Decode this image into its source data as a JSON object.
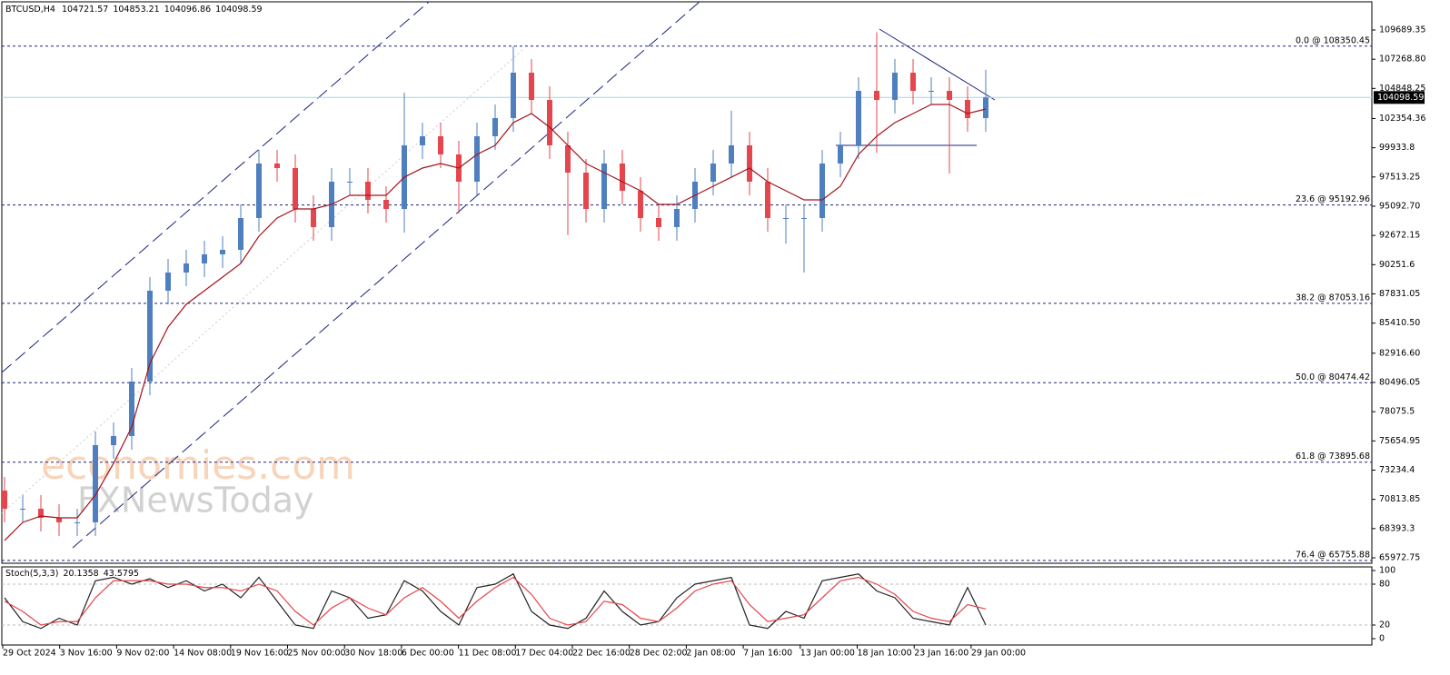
{
  "chart_data": {
    "type": "candlestick",
    "header": {
      "symbol": "BTCUSD,H4",
      "open": 104721.57,
      "high": 104853.21,
      "low": 104096.86,
      "close": 104098.59
    },
    "watermark": [
      "economies.com",
      "FXNewsToday"
    ],
    "ylim": [
      65521,
      112172
    ],
    "yticks": [
      109689.35,
      {
        "value": 107268.8,
        "label": "107268.80"
      },
      104848.25,
      102354.36,
      99933.8,
      97513.25,
      {
        "value": 95092.7,
        "label": "95092.70"
      },
      92672.15,
      90251.6,
      87831.05,
      {
        "value": 85410.5,
        "label": "85410.50"
      },
      {
        "value": 82916.6,
        "label": "82916.60"
      },
      80496.05,
      78075.5,
      75654.95,
      73234.4,
      70813.85,
      68393.3,
      65972.75
    ],
    "current_price": 104098.59,
    "fib_levels": [
      {
        "value": 108350.45,
        "label": "0.0 @ 108350.45"
      },
      {
        "value": 95192.96,
        "label": "23.6 @ 95192.96"
      },
      {
        "value": 87053.16,
        "label": "38.2 @ 87053.16"
      },
      {
        "value": 80474.42,
        "label": "50.0 @ 80474.42"
      },
      {
        "value": 73895.68,
        "label": "61.8 @ 73895.68"
      },
      {
        "value": 65755.88,
        "label": "76.4 @ 65755.88"
      }
    ],
    "categories": [
      "29 Oct 2024",
      "3 Nov 16:00",
      "9 Nov 02:00",
      "14 Nov 08:00",
      "19 Nov 16:00",
      "25 Nov 00:00",
      "30 Nov 18:00",
      "6 Dec 00:00",
      "11 Dec 08:00",
      "17 Dec 04:00",
      "22 Dec 16:00",
      "28 Dec 02:00",
      "2 Jan 08:00",
      "7 Jan 16:00",
      "13 Jan 00:00",
      "18 Jan 10:00",
      "23 Jan 16:00",
      "29 Jan 00:00"
    ],
    "up_color": "#4f7fbf",
    "down_color": "#e5454d",
    "candles": [
      [
        71542,
        72672,
        68908,
        70038
      ],
      [
        70038,
        71168,
        68908,
        70038
      ],
      [
        70038,
        71168,
        68155,
        69285
      ],
      [
        69285,
        70415,
        67779,
        68909
      ],
      [
        68909,
        70039,
        67779,
        68909
      ],
      [
        68909,
        76434,
        67779,
        75304
      ],
      [
        75304,
        77187,
        74174,
        76057
      ],
      [
        76057,
        81701,
        74927,
        80571
      ],
      [
        80571,
        89225,
        79441,
        88095
      ],
      [
        88095,
        90730,
        86965,
        89600
      ],
      [
        89600,
        91482,
        88470,
        90352
      ],
      [
        90352,
        92235,
        89222,
        91105
      ],
      [
        91105,
        92611,
        89975,
        91481
      ],
      [
        91481,
        95244,
        90351,
        94114
      ],
      [
        94114,
        99759,
        92984,
        98629
      ],
      [
        98629,
        99759,
        97122,
        98252
      ],
      [
        98252,
        99382,
        93736,
        94866
      ],
      [
        94866,
        95996,
        92232,
        93362
      ],
      [
        93362,
        98254,
        92232,
        97124
      ],
      [
        97124,
        98254,
        95994,
        97124
      ],
      [
        97124,
        98254,
        94489,
        95619
      ],
      [
        95619,
        96749,
        93736,
        94866
      ],
      [
        94866,
        104500,
        92900,
        100134
      ],
      [
        100134,
        102016,
        99004,
        100886
      ],
      [
        100886,
        102016,
        98251,
        99381
      ],
      [
        99381,
        100511,
        94500,
        97124
      ],
      [
        97124,
        102016,
        95994,
        100886
      ],
      [
        100886,
        103521,
        99756,
        102391
      ],
      [
        102391,
        108350,
        101261,
        106153
      ],
      [
        106153,
        107283,
        102766,
        103896
      ],
      [
        103896,
        105026,
        99004,
        100134
      ],
      [
        100134,
        101264,
        92700,
        97876
      ],
      [
        97876,
        99006,
        93736,
        94866
      ],
      [
        94866,
        99759,
        93736,
        98629
      ],
      [
        98629,
        99759,
        95242,
        96372
      ],
      [
        96372,
        97502,
        92984,
        94114
      ],
      [
        94114,
        95244,
        92232,
        93362
      ],
      [
        93362,
        95996,
        92232,
        94866
      ],
      [
        94866,
        98254,
        93736,
        97124
      ],
      [
        97124,
        99759,
        95994,
        98629
      ],
      [
        98629,
        103000,
        97499,
        100134
      ],
      [
        100134,
        101264,
        95994,
        97124
      ],
      [
        97124,
        98254,
        92984,
        94114
      ],
      [
        94114,
        95244,
        92000,
        94114
      ],
      [
        94114,
        95244,
        89600,
        94114
      ],
      [
        94114,
        99759,
        92984,
        98629
      ],
      [
        98629,
        101264,
        97499,
        100134
      ],
      [
        100134,
        105778,
        99004,
        104648
      ],
      [
        104648,
        109500,
        99500,
        103896
      ],
      [
        103896,
        107283,
        102766,
        106153
      ],
      [
        106153,
        107283,
        103518,
        104648
      ],
      [
        104648,
        105778,
        103518,
        104648
      ],
      [
        104648,
        105778,
        97800,
        103896
      ],
      [
        103896,
        105026,
        101261,
        102391
      ],
      [
        102391,
        106400,
        101261,
        104099
      ]
    ],
    "ma": {
      "color": "#a3141c",
      "values": [
        67404,
        68909,
        69435,
        69285,
        69285,
        71166,
        73800,
        76809,
        82076,
        85086,
        86967,
        88095,
        89224,
        90352,
        92610,
        94114,
        94866,
        94866,
        95243,
        95995,
        95995,
        95995,
        97497,
        98253,
        98629,
        98253,
        99381,
        100134,
        102015,
        102767,
        101638,
        100134,
        98629,
        97876,
        97124,
        96372,
        95243,
        95243,
        95995,
        96748,
        97497,
        98253,
        97124,
        96372,
        95619,
        95619,
        96748,
        99381,
        100886,
        102015,
        102767,
        103519,
        103519,
        102767,
        103143
      ]
    },
    "stoch": {
      "name": "Stoch(5,3,3)",
      "ylim": [
        0,
        100
      ],
      "yticks": [
        100,
        80,
        20,
        0
      ],
      "levels": [
        80,
        20
      ],
      "series": [
        {
          "color": "#222222",
          "values": [
            60,
            25,
            15,
            30,
            20,
            85,
            90,
            80,
            88,
            75,
            85,
            70,
            80,
            60,
            90,
            55,
            20,
            15,
            70,
            60,
            30,
            35,
            85,
            70,
            40,
            20,
            75,
            80,
            95,
            40,
            20,
            15,
            30,
            70,
            40,
            20,
            25,
            60,
            80,
            85,
            90,
            20,
            15,
            40,
            30,
            85,
            90,
            95,
            70,
            60,
            30,
            25,
            20,
            75,
            20.1358
          ]
        },
        {
          "color": "#e5454d",
          "values": [
            55,
            40,
            20,
            25,
            25,
            60,
            85,
            85,
            85,
            80,
            80,
            75,
            75,
            70,
            80,
            70,
            40,
            20,
            45,
            60,
            45,
            35,
            60,
            75,
            55,
            30,
            55,
            75,
            90,
            65,
            30,
            20,
            25,
            55,
            50,
            30,
            25,
            45,
            70,
            80,
            85,
            50,
            25,
            30,
            35,
            60,
            85,
            90,
            80,
            65,
            40,
            30,
            25,
            50,
            43.5795
          ]
        }
      ]
    }
  }
}
